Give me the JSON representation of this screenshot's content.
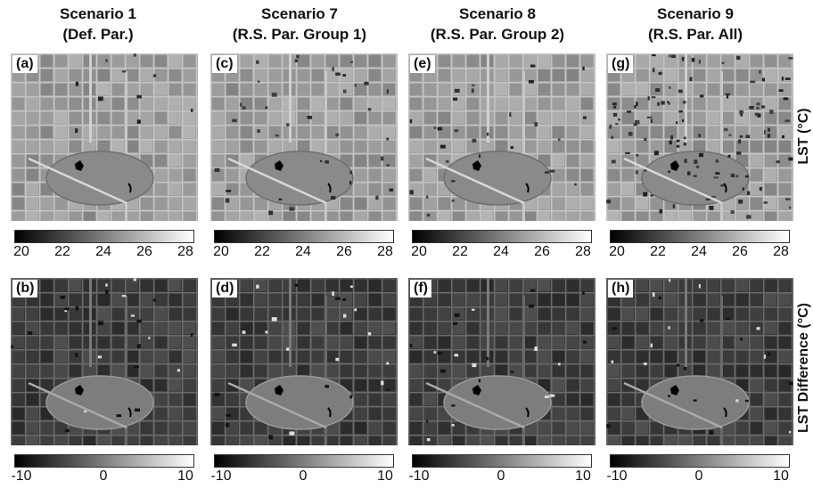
{
  "columns": [
    {
      "title1": "Scenario 1",
      "title2": "(Def. Par.)",
      "top_tag": "(a)",
      "bottom_tag": "(b)"
    },
    {
      "title1": "Scenario 7",
      "title2": "(R.S. Par. Group 1)",
      "top_tag": "(c)",
      "bottom_tag": "(d)"
    },
    {
      "title1": "Scenario 8",
      "title2": "(R.S. Par. Group 2)",
      "top_tag": "(e)",
      "bottom_tag": "(f)"
    },
    {
      "title1": "Scenario 9",
      "title2": "(R.S. Par. All)",
      "top_tag": "(g)",
      "bottom_tag": "(h)"
    }
  ],
  "row_labels": {
    "top": "LST (°C)",
    "bottom": "LST Difference (°C)"
  },
  "lst_ticks": [
    "20",
    "22",
    "24",
    "26",
    "28"
  ],
  "diff_ticks": [
    "-10",
    "0",
    "10"
  ]
}
